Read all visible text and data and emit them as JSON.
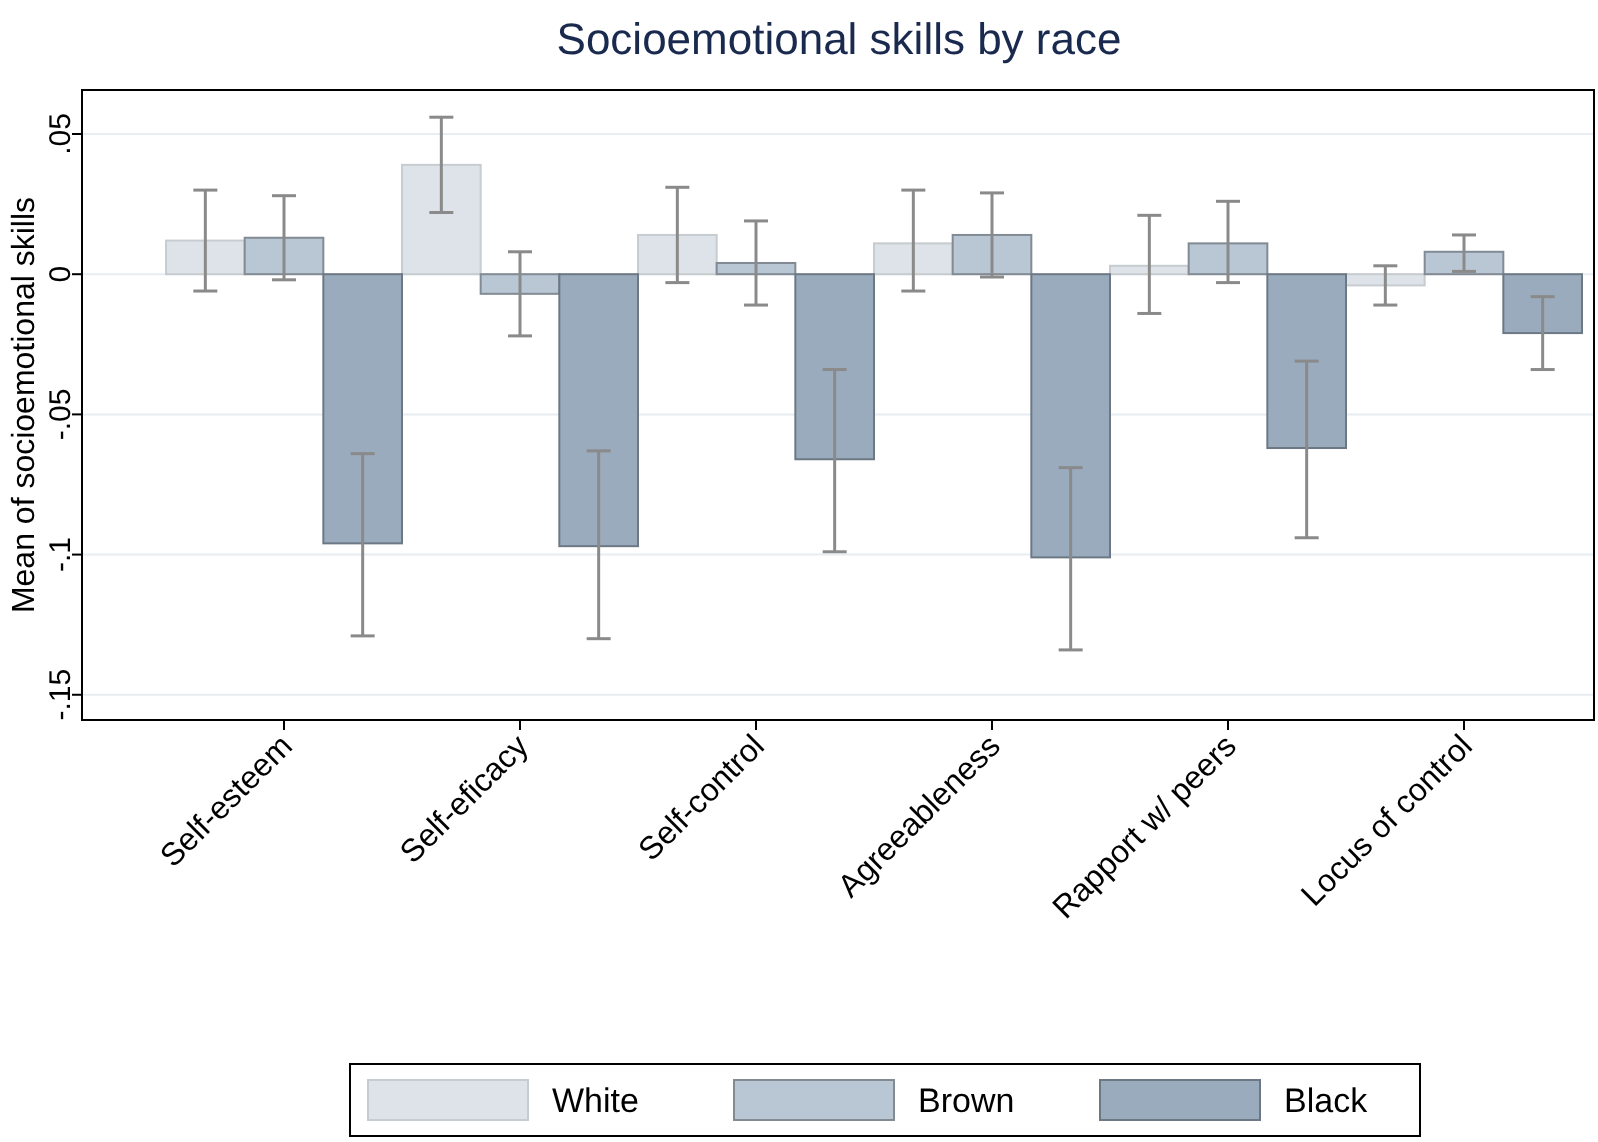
{
  "chart_data": {
    "type": "bar",
    "title": "Socioemotional skills by race",
    "ylabel": "Mean of socioemotional skills",
    "categories": [
      "Self-esteem",
      "Self-eficacy",
      "Self-control",
      "Agreeableness",
      "Rapport w/ peers",
      "Locus of control"
    ],
    "series": [
      {
        "name": "White",
        "color": "#dde3e8",
        "values": [
          0.012,
          0.039,
          0.014,
          0.011,
          0.003,
          -0.004
        ],
        "errors": [
          [
            -0.006,
            0.03
          ],
          [
            0.022,
            0.056
          ],
          [
            -0.003,
            0.031
          ],
          [
            -0.006,
            0.03
          ],
          [
            -0.014,
            0.021
          ],
          [
            -0.011,
            0.003
          ]
        ]
      },
      {
        "name": "Brown",
        "color": "#b9c6d3",
        "values": [
          0.013,
          -0.007,
          0.004,
          0.014,
          0.011,
          0.008
        ],
        "errors": [
          [
            -0.002,
            0.028
          ],
          [
            -0.022,
            0.008
          ],
          [
            -0.011,
            0.019
          ],
          [
            -0.001,
            0.029
          ],
          [
            -0.003,
            0.026
          ],
          [
            0.001,
            0.014
          ]
        ]
      },
      {
        "name": "Black",
        "color": "#9aabbd",
        "values": [
          -0.096,
          -0.097,
          -0.066,
          -0.101,
          -0.062,
          -0.021
        ],
        "errors": [
          [
            -0.129,
            -0.064
          ],
          [
            -0.13,
            -0.063
          ],
          [
            -0.099,
            -0.034
          ],
          [
            -0.134,
            -0.069
          ],
          [
            -0.094,
            -0.031
          ],
          [
            -0.034,
            -0.008
          ]
        ]
      }
    ],
    "ylim": [
      -0.159,
      0.0657
    ],
    "yticks": [
      {
        "value": -0.15,
        "label": "-.15"
      },
      {
        "value": -0.1,
        "label": "-.1"
      },
      {
        "value": -0.05,
        "label": "-.05"
      },
      {
        "value": 0,
        "label": "0"
      },
      {
        "value": 0.05,
        "label": ".05"
      }
    ],
    "grid": "y",
    "legend": "bottom"
  }
}
